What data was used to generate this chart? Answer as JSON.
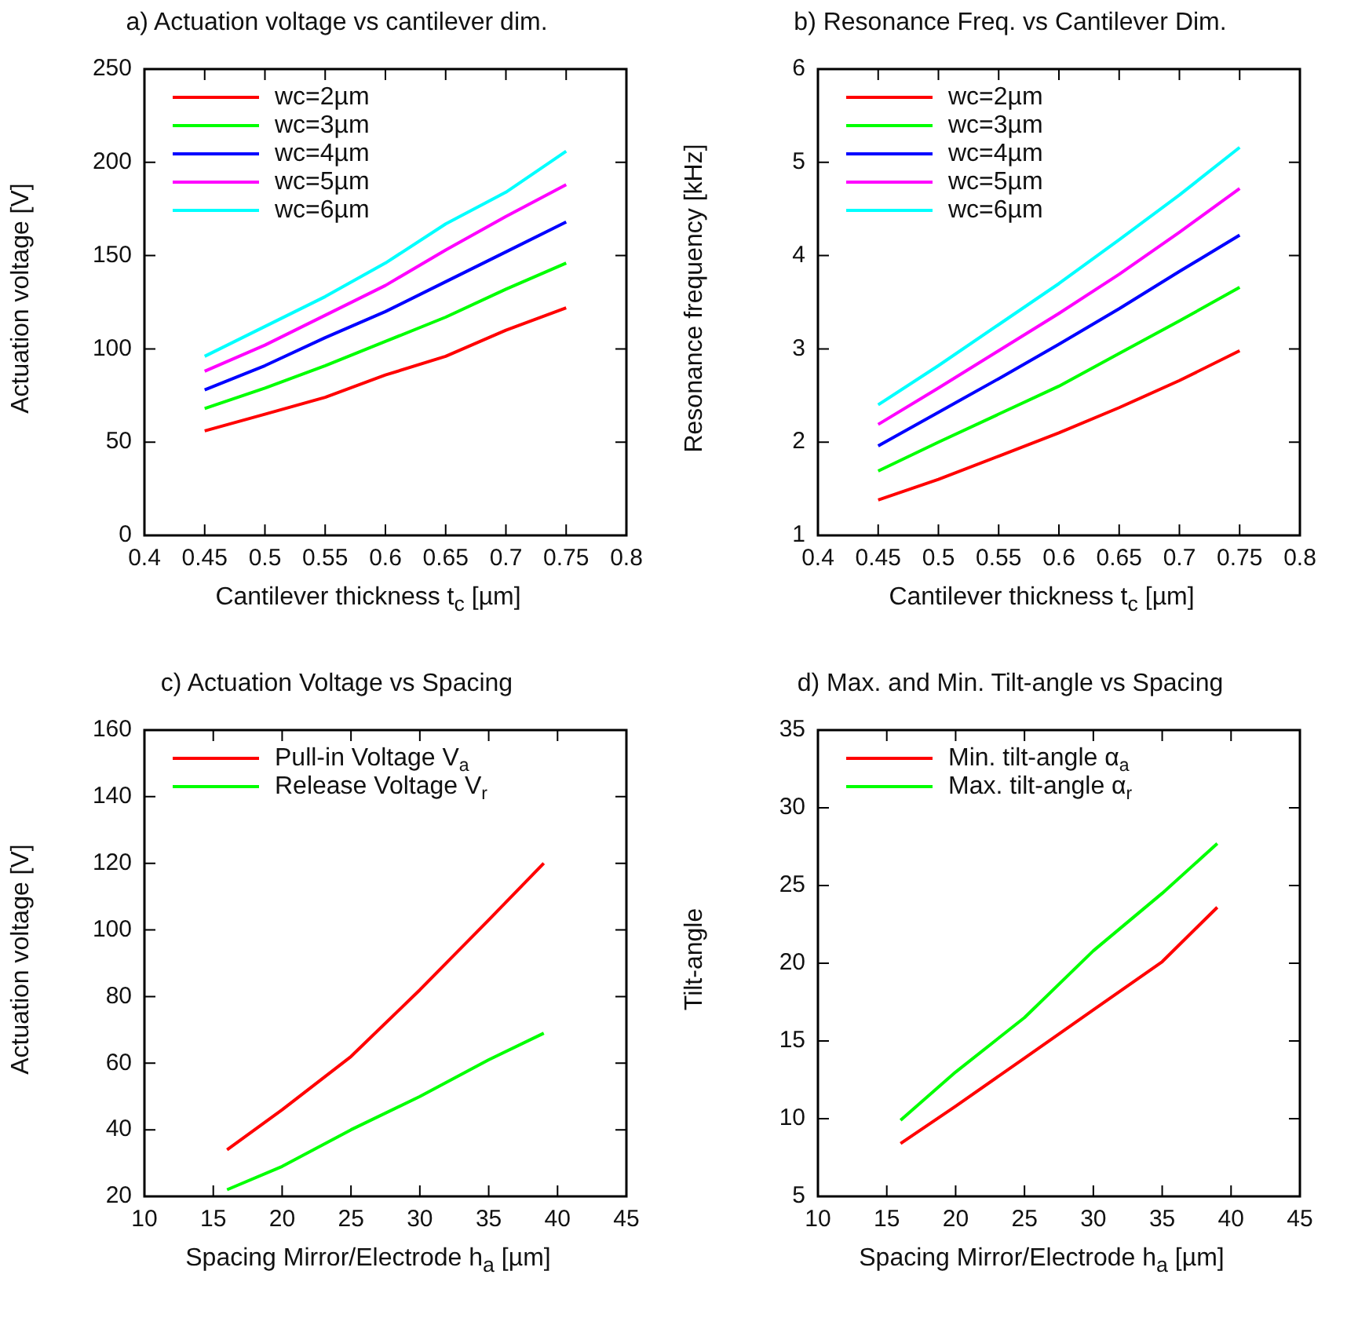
{
  "chart_data": [
    {
      "type": "line",
      "title": "a) Actuation voltage vs cantilever dim.",
      "xlabel": "Cantilever thickness t$_{c}$ [µm]",
      "ylabel": "Actuation voltage [V]",
      "x": [
        0.45,
        0.5,
        0.55,
        0.6,
        0.65,
        0.7,
        0.75
      ],
      "xlim": [
        0.4,
        0.8
      ],
      "xticks": [
        0.4,
        0.45,
        0.5,
        0.55,
        0.6,
        0.65,
        0.7,
        0.75,
        0.8
      ],
      "ylim": [
        0,
        250
      ],
      "yticks": [
        0,
        50,
        100,
        150,
        200,
        250
      ],
      "grid": false,
      "legend": "top left",
      "series": [
        {
          "name": "wc=2µm",
          "color": "#ff0000",
          "values": [
            56,
            65,
            74,
            86,
            96,
            110,
            122
          ]
        },
        {
          "name": "wc=3µm",
          "color": "#00ff00",
          "values": [
            68,
            79,
            91,
            104,
            117,
            132,
            146
          ]
        },
        {
          "name": "wc=4µm",
          "color": "#0000ff",
          "values": [
            78,
            91,
            106,
            120,
            136,
            152,
            168
          ]
        },
        {
          "name": "wc=5µm",
          "color": "#ff00ff",
          "values": [
            88,
            102,
            118,
            134,
            153,
            171,
            188
          ]
        },
        {
          "name": "wc=6µm",
          "color": "#00ffff",
          "values": [
            96,
            112,
            128,
            146,
            167,
            184,
            206
          ]
        }
      ]
    },
    {
      "type": "line",
      "title": "b) Resonance Freq. vs Cantilever Dim.",
      "xlabel": "Cantilever thickness t$_{c}$ [µm]",
      "ylabel": "Resonance frequency [kHz]",
      "x": [
        0.45,
        0.5,
        0.55,
        0.6,
        0.65,
        0.7,
        0.75
      ],
      "xlim": [
        0.4,
        0.8
      ],
      "xticks": [
        0.4,
        0.45,
        0.5,
        0.55,
        0.6,
        0.65,
        0.7,
        0.75,
        0.8
      ],
      "ylim": [
        1,
        6
      ],
      "yticks": [
        1,
        2,
        3,
        4,
        5,
        6
      ],
      "grid": false,
      "legend": "top left",
      "series": [
        {
          "name": "wc=2µm",
          "color": "#ff0000",
          "values": [
            1.38,
            1.6,
            1.85,
            2.1,
            2.37,
            2.66,
            2.98
          ]
        },
        {
          "name": "wc=3µm",
          "color": "#00ff00",
          "values": [
            1.69,
            2.0,
            2.3,
            2.6,
            2.95,
            3.3,
            3.66
          ]
        },
        {
          "name": "wc=4µm",
          "color": "#0000ff",
          "values": [
            1.96,
            2.32,
            2.68,
            3.05,
            3.43,
            3.83,
            4.22
          ]
        },
        {
          "name": "wc=5µm",
          "color": "#ff00ff",
          "values": [
            2.19,
            2.58,
            2.98,
            3.38,
            3.8,
            4.25,
            4.72
          ]
        },
        {
          "name": "wc=6µm",
          "color": "#00ffff",
          "values": [
            2.4,
            2.82,
            3.26,
            3.7,
            4.17,
            4.65,
            5.16
          ]
        }
      ]
    },
    {
      "type": "line",
      "title": "c) Actuation Voltage vs Spacing",
      "xlabel": "Spacing Mirror/Electrode h$_{a}$ [µm]",
      "ylabel": "Actuation voltage [V]",
      "x": [
        16,
        20,
        25,
        30,
        35,
        39
      ],
      "xlim": [
        10,
        45
      ],
      "xticks": [
        10,
        15,
        20,
        25,
        30,
        35,
        40,
        45
      ],
      "ylim": [
        20,
        160
      ],
      "yticks": [
        20,
        40,
        60,
        80,
        100,
        120,
        140,
        160
      ],
      "grid": false,
      "legend": "top left",
      "series": [
        {
          "name": "Pull-in Voltage V$_{a}$",
          "color": "#ff0000",
          "values": [
            34,
            46,
            62,
            82,
            103,
            120
          ]
        },
        {
          "name": "Release Voltage V$_{r}$",
          "color": "#00ff00",
          "values": [
            22,
            29,
            40,
            50,
            61,
            69
          ]
        }
      ]
    },
    {
      "type": "line",
      "title": "d) Max. and Min. Tilt-angle vs Spacing",
      "xlabel": "Spacing Mirror/Electrode h$_{a}$ [µm]",
      "ylabel": "Tilt-angle",
      "x": [
        16,
        20,
        25,
        30,
        35,
        39
      ],
      "xlim": [
        10,
        45
      ],
      "xticks": [
        10,
        15,
        20,
        25,
        30,
        35,
        40,
        45
      ],
      "ylim": [
        5,
        35
      ],
      "yticks": [
        5,
        10,
        15,
        20,
        25,
        30,
        35
      ],
      "grid": false,
      "legend": "top left",
      "series": [
        {
          "name": "Min. tilt-angle α$_{a}$",
          "color": "#ff0000",
          "values": [
            8.4,
            10.8,
            13.9,
            17,
            20.1,
            23.6
          ]
        },
        {
          "name": "Max. tilt-angle α$_{r}$",
          "color": "#00ff00",
          "values": [
            9.9,
            13,
            16.5,
            20.8,
            24.5,
            27.7
          ]
        }
      ]
    }
  ]
}
